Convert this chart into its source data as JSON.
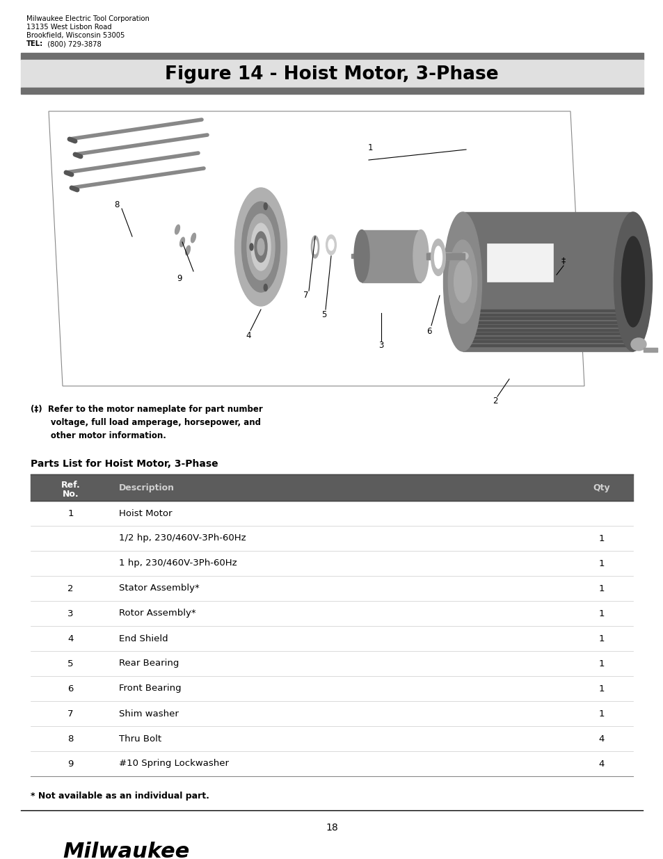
{
  "page_title": "Figure 14 - Hoist Motor, 3-Phase",
  "company_name": "Milwaukee Electric Tool Corporation",
  "company_address1": "13135 West Lisbon Road",
  "company_address2": "Brookfield, Wisconsin 53005",
  "company_tel_label": "TEL:",
  "company_tel": "  (800) 729-3878",
  "parts_list_title": "Parts List for Hoist Motor, 3-Phase",
  "table_header_bg": "#5c5c5c",
  "parts": [
    {
      "ref": "1",
      "description": "Hoist Motor",
      "qty": ""
    },
    {
      "ref": "",
      "description": "1/2 hp, 230/460V-3Ph-60Hz",
      "qty": "1"
    },
    {
      "ref": "",
      "description": "1 hp, 230/460V-3Ph-60Hz",
      "qty": "1"
    },
    {
      "ref": "2",
      "description": "Stator Assembly*",
      "qty": "1"
    },
    {
      "ref": "3",
      "description": "Rotor Assembly*",
      "qty": "1"
    },
    {
      "ref": "4",
      "description": "End Shield",
      "qty": "1"
    },
    {
      "ref": "5",
      "description": "Rear Bearing",
      "qty": "1"
    },
    {
      "ref": "6",
      "description": "Front Bearing",
      "qty": "1"
    },
    {
      "ref": "7",
      "description": "Shim washer",
      "qty": "1"
    },
    {
      "ref": "8",
      "description": "Thru Bolt",
      "qty": "4"
    },
    {
      "ref": "9",
      "description": "#10 Spring Lockwasher",
      "qty": "4"
    }
  ],
  "footnote_dagger": "(‡)  Refer to the motor nameplate for part number\n       voltage, full load amperage, horsepower, and\n       other motor information.",
  "footnote_star": "* Not available as an individual part.",
  "page_number": "18"
}
